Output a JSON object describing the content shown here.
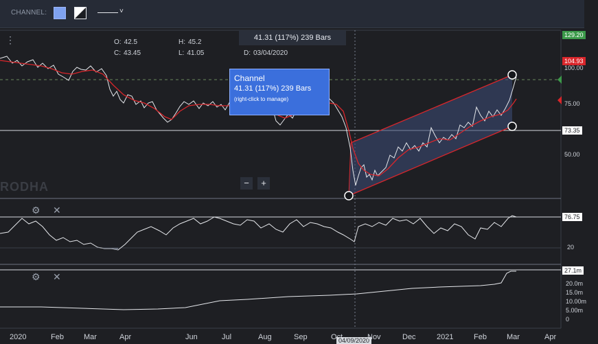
{
  "toolbar": {
    "label": "CHANNEL:",
    "swatch_color": "#7fa2f0",
    "pattern_icon": "fill-pattern-icon",
    "linestyle_chevron": "˅"
  },
  "ohlc": {
    "o_label": "O:",
    "o_value": "42.5",
    "h_label": "H:",
    "h_value": "45.2",
    "c_label": "C:",
    "c_value": "43.45",
    "l_label": "L:",
    "l_value": "41.05",
    "d_label": "D:",
    "d_value": "03/04/2020"
  },
  "top_tooltip": "41.31 (117%) 239 Bars",
  "channel_box": {
    "title": "Channel",
    "stats": "41.31 (117%) 239 Bars",
    "hint": "(right-click to manage)"
  },
  "price_axis": {
    "current_price": "129.20",
    "last_price": "104.93",
    "channel_lower": "73.35",
    "ticks": [
      "100.00",
      "75.00",
      "50.00"
    ]
  },
  "rsi_panel": {
    "current": "76.75",
    "tick": "20"
  },
  "volume_panel": {
    "current": "27.1m",
    "ticks": [
      "20.0m",
      "15.0m",
      "10.00m",
      "5.00m",
      "0"
    ]
  },
  "watermark": "RODHA",
  "x_axis": {
    "labels": [
      "2020",
      "Feb",
      "Mar",
      "Apr",
      "Jun",
      "Jul",
      "Aug",
      "Sep",
      "Oct",
      "Nov",
      "Dec",
      "2021",
      "Feb",
      "Mar",
      "Apr"
    ],
    "cursor_date": "04/09/2020"
  },
  "controls": {
    "zoom_out": "−",
    "zoom_in": "+",
    "menu_dots": "⋮",
    "settings": "⚙",
    "close": "✕"
  },
  "colors": {
    "price_line": "#e6e8ec",
    "ma_line": "#d9262b",
    "channel": "#d9262b",
    "channel_fill": "#3a4a72",
    "green_tag": "#3c9a4a",
    "red_tag": "#d9262b"
  }
}
